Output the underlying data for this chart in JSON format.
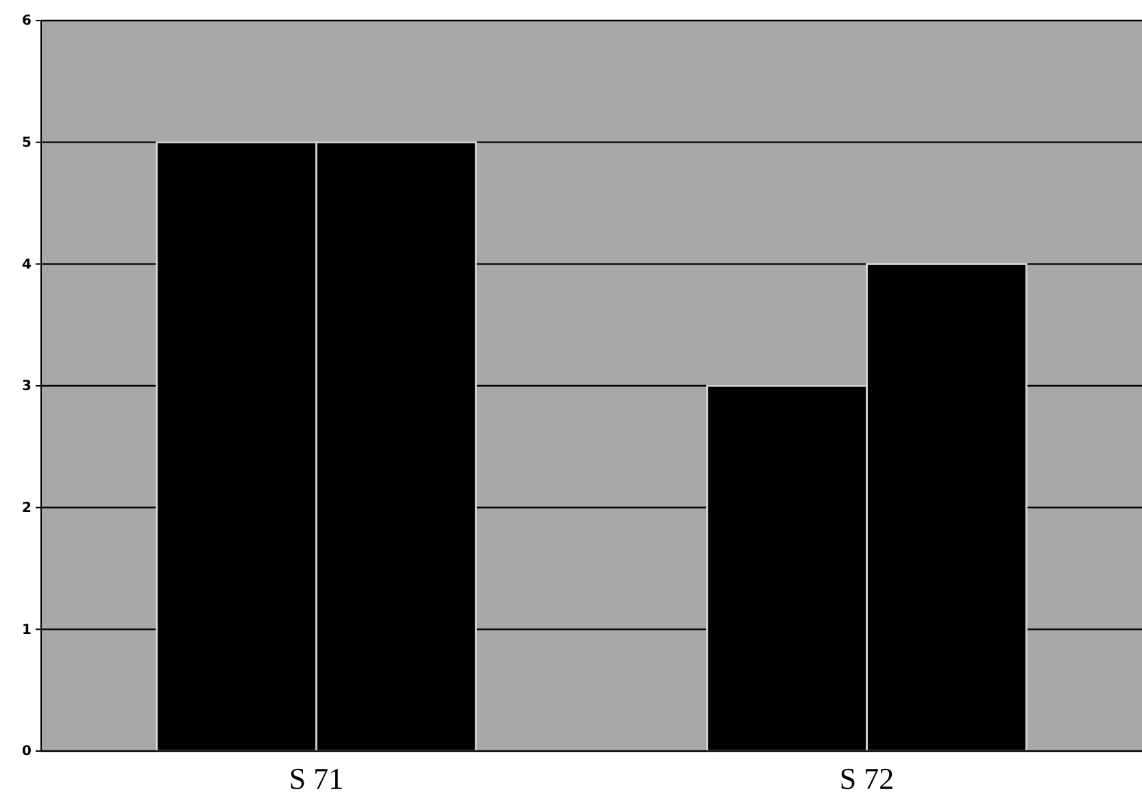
{
  "chart_data": {
    "type": "bar",
    "categories": [
      "S 71",
      "S 72"
    ],
    "series": [
      {
        "color": "#000000",
        "values": [
          5,
          3
        ]
      },
      {
        "color": "#000000",
        "values": [
          5,
          4
        ]
      }
    ],
    "ylim": [
      0,
      6
    ],
    "yticks": [
      0,
      1,
      2,
      3,
      4,
      5,
      6
    ],
    "grid": "y"
  }
}
